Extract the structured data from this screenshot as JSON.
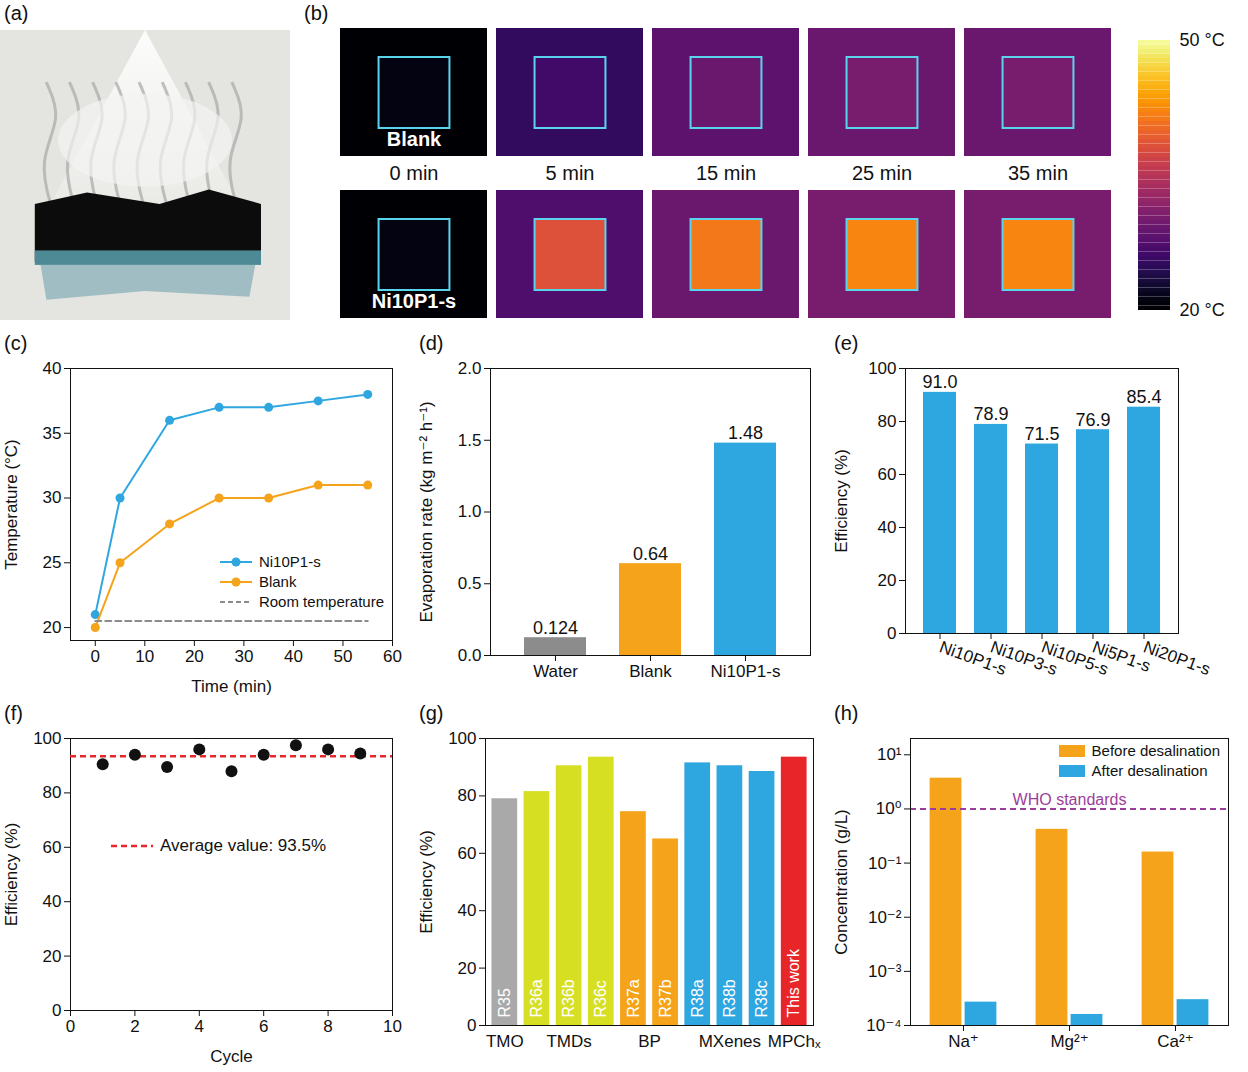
{
  "chart_data": [
    {
      "panel": "(a)",
      "type": "illustration"
    },
    {
      "panel": "(b)",
      "type": "heatmap",
      "times": [
        "0 min",
        "5 min",
        "15 min",
        "25 min",
        "35 min"
      ],
      "rows": [
        {
          "name": "Blank",
          "center_temps": [
            21,
            26,
            29,
            30,
            30
          ],
          "surround_temps": [
            20,
            25,
            28,
            29,
            29
          ]
        },
        {
          "name": "Ni10P1-s",
          "center_temps": [
            21,
            38,
            41,
            42,
            42
          ],
          "surround_temps": [
            20,
            27,
            29,
            30,
            30
          ]
        }
      ],
      "colorbar": {
        "range": [
          20,
          50
        ],
        "ticks": [
          {
            "value": 20,
            "label": "20 °C"
          },
          {
            "value": 50,
            "label": "50 °C"
          }
        ]
      }
    },
    {
      "panel": "(c)",
      "type": "line",
      "x_label": "Time (min)",
      "y_label": "Temperature (°C)",
      "x": [
        0,
        5,
        15,
        25,
        35,
        45,
        55
      ],
      "series": [
        {
          "name": "Ni10P1-s",
          "color": "#2ea7e0",
          "marker": "circle",
          "values": [
            21,
            30,
            36,
            37,
            37,
            37.5,
            38
          ]
        },
        {
          "name": "Blank",
          "color": "#f5a31a",
          "marker": "circle",
          "values": [
            20,
            25,
            28,
            30,
            30,
            31,
            31
          ]
        },
        {
          "name": "Room temperature",
          "color": "#8c8c8c",
          "marker": "none",
          "line_style": "dashed",
          "values": [
            20.5,
            20.5,
            20.5,
            20.5,
            20.5,
            20.5,
            20.5
          ]
        }
      ],
      "xlim": [
        -5,
        60
      ],
      "xticks": [
        0,
        10,
        20,
        30,
        40,
        50,
        60
      ],
      "ylim": [
        19,
        40
      ],
      "yticks": [
        20,
        25,
        30,
        35,
        40
      ],
      "legend": "lower right"
    },
    {
      "panel": "(d)",
      "type": "bar",
      "y_label": "Evaporation rate (kg m⁻² h⁻¹)",
      "categories": [
        "Water",
        "Blank",
        "Ni10P1-s"
      ],
      "values": [
        0.124,
        0.64,
        1.48
      ],
      "colors": [
        "#8c8c8c",
        "#f5a31a",
        "#2ea7e0"
      ],
      "ylim": [
        0,
        2
      ],
      "yticks": [
        {
          "value": 0,
          "label": "0.0"
        },
        {
          "value": 0.5,
          "label": "0.5"
        },
        {
          "value": 1,
          "label": "1.0"
        },
        {
          "value": 1.5,
          "label": "1.5"
        },
        {
          "value": 2,
          "label": "2.0"
        }
      ],
      "data_labels": true
    },
    {
      "panel": "(e)",
      "type": "bar",
      "y_label": "Efficiency (%)",
      "categories": [
        "Ni10P1-s",
        "Ni10P3-s",
        "Ni10P5-s",
        "Ni5P1-s",
        "Ni20P1-s"
      ],
      "values": [
        91.0,
        78.9,
        71.5,
        76.9,
        85.4
      ],
      "value_labels": [
        "91.0",
        "78.9",
        "71.5",
        "76.9",
        "85.4"
      ],
      "color": "#2ea7e0",
      "ylim": [
        0,
        100
      ],
      "yticks": [
        0,
        20,
        40,
        60,
        80,
        100
      ],
      "data_labels": true
    },
    {
      "panel": "(f)",
      "type": "scatter",
      "x_label": "Cycle",
      "y_label": "Efficiency (%)",
      "x": [
        1,
        2,
        3,
        4,
        5,
        6,
        7,
        8,
        9
      ],
      "values": [
        90.5,
        94,
        89.5,
        96,
        88,
        94,
        97.5,
        96,
        94.5
      ],
      "color": "#111111",
      "marker": "circle",
      "xlim": [
        0,
        10
      ],
      "xticks": [
        0,
        2,
        4,
        6,
        8,
        10
      ],
      "ylim": [
        0,
        100
      ],
      "yticks": [
        0,
        20,
        40,
        60,
        80,
        100
      ],
      "reference_lines": [
        {
          "value": 93.5,
          "color": "#e8262a",
          "line_style": "dashed",
          "label": "Average value: 93.5%"
        }
      ]
    },
    {
      "panel": "(g)",
      "type": "bar",
      "y_label": "Efficiency (%)",
      "categories": [
        "R35",
        "R36a",
        "R36b",
        "R36c",
        "R37a",
        "R37b",
        "R38a",
        "R38b",
        "R38c",
        "This work"
      ],
      "values": [
        79,
        81.5,
        90.5,
        93.5,
        74.5,
        65,
        91.5,
        90.5,
        88.5,
        93.5
      ],
      "colors": [
        "#a9a9a9",
        "#d7df23",
        "#d7df23",
        "#d7df23",
        "#f5a31a",
        "#f5a31a",
        "#2ea7e0",
        "#2ea7e0",
        "#2ea7e0",
        "#e8262a"
      ],
      "groups": [
        "TMO",
        "TMDs",
        "TMDs",
        "TMDs",
        "BP",
        "BP",
        "MXenes",
        "MXenes",
        "MXenes",
        "MPChₓ"
      ],
      "ylim": [
        0,
        100
      ],
      "yticks": [
        0,
        20,
        40,
        60,
        80,
        100
      ]
    },
    {
      "panel": "(h)",
      "type": "bar",
      "log": "y",
      "y_label": "Concentration (g/L)",
      "categories": [
        "Na⁺",
        "Mg²⁺",
        "Ca²⁺"
      ],
      "series": [
        {
          "name": "Before desalination",
          "color": "#f5a31a",
          "values": [
            3.7,
            0.42,
            0.16
          ]
        },
        {
          "name": "After desalination",
          "color": "#2ea7e0",
          "values": [
            0.00027,
            0.00016,
            0.0003
          ]
        }
      ],
      "ylim": [
        0.0001,
        20
      ],
      "yticks": [
        {
          "value": 0.0001,
          "label": "10⁻⁴"
        },
        {
          "value": 0.001,
          "label": "10⁻³"
        },
        {
          "value": 0.01,
          "label": "10⁻²"
        },
        {
          "value": 0.1,
          "label": "10⁻¹"
        },
        {
          "value": 1,
          "label": "10⁰"
        },
        {
          "value": 10,
          "label": "10¹"
        }
      ],
      "legend": "upper right",
      "reference_lines": [
        {
          "value": 1,
          "color": "#9b3d9b",
          "line_style": "dashed",
          "label": "WHO standards"
        }
      ]
    }
  ]
}
